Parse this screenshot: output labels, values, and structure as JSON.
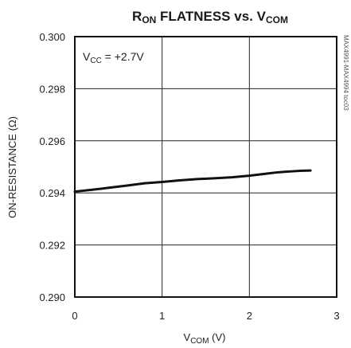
{
  "chart_data": {
    "type": "line",
    "title": {
      "main": "R",
      "sub": "ON",
      "rest": " FLATNESS vs. V",
      "sub2": "COM"
    },
    "xlabel": {
      "main": "V",
      "sub": "COM",
      "rest": " (V)"
    },
    "ylabel": "ON-RESISTANCE (Ω)",
    "annotation": {
      "main": "V",
      "sub": "CC",
      "rest": " = +2.7V"
    },
    "side_label": "MAX4991-MAX4994 toc03",
    "xlim": [
      0,
      3
    ],
    "ylim": [
      0.29,
      0.3
    ],
    "x_ticks": [
      0,
      1,
      2,
      3
    ],
    "x_tick_labels": [
      "0",
      "1",
      "2",
      "3"
    ],
    "y_ticks": [
      0.29,
      0.292,
      0.294,
      0.296,
      0.298,
      0.3
    ],
    "y_tick_labels": [
      "0.290",
      "0.292",
      "0.294",
      "0.296",
      "0.298",
      "0.300"
    ],
    "grid": true,
    "series": [
      {
        "x": [
          0,
          0.2,
          0.4,
          0.6,
          0.8,
          1.0,
          1.2,
          1.4,
          1.6,
          1.8,
          2.0,
          2.2,
          2.3,
          2.4,
          2.5,
          2.6,
          2.7
        ],
        "y": [
          0.29405,
          0.29412,
          0.2942,
          0.29428,
          0.29437,
          0.29442,
          0.29448,
          0.29453,
          0.29456,
          0.2946,
          0.29466,
          0.29474,
          0.29478,
          0.29481,
          0.29483,
          0.29485,
          0.29486
        ]
      }
    ],
    "colors": {
      "line": "#111111",
      "grid": "#222222",
      "frame": "#111111"
    }
  }
}
